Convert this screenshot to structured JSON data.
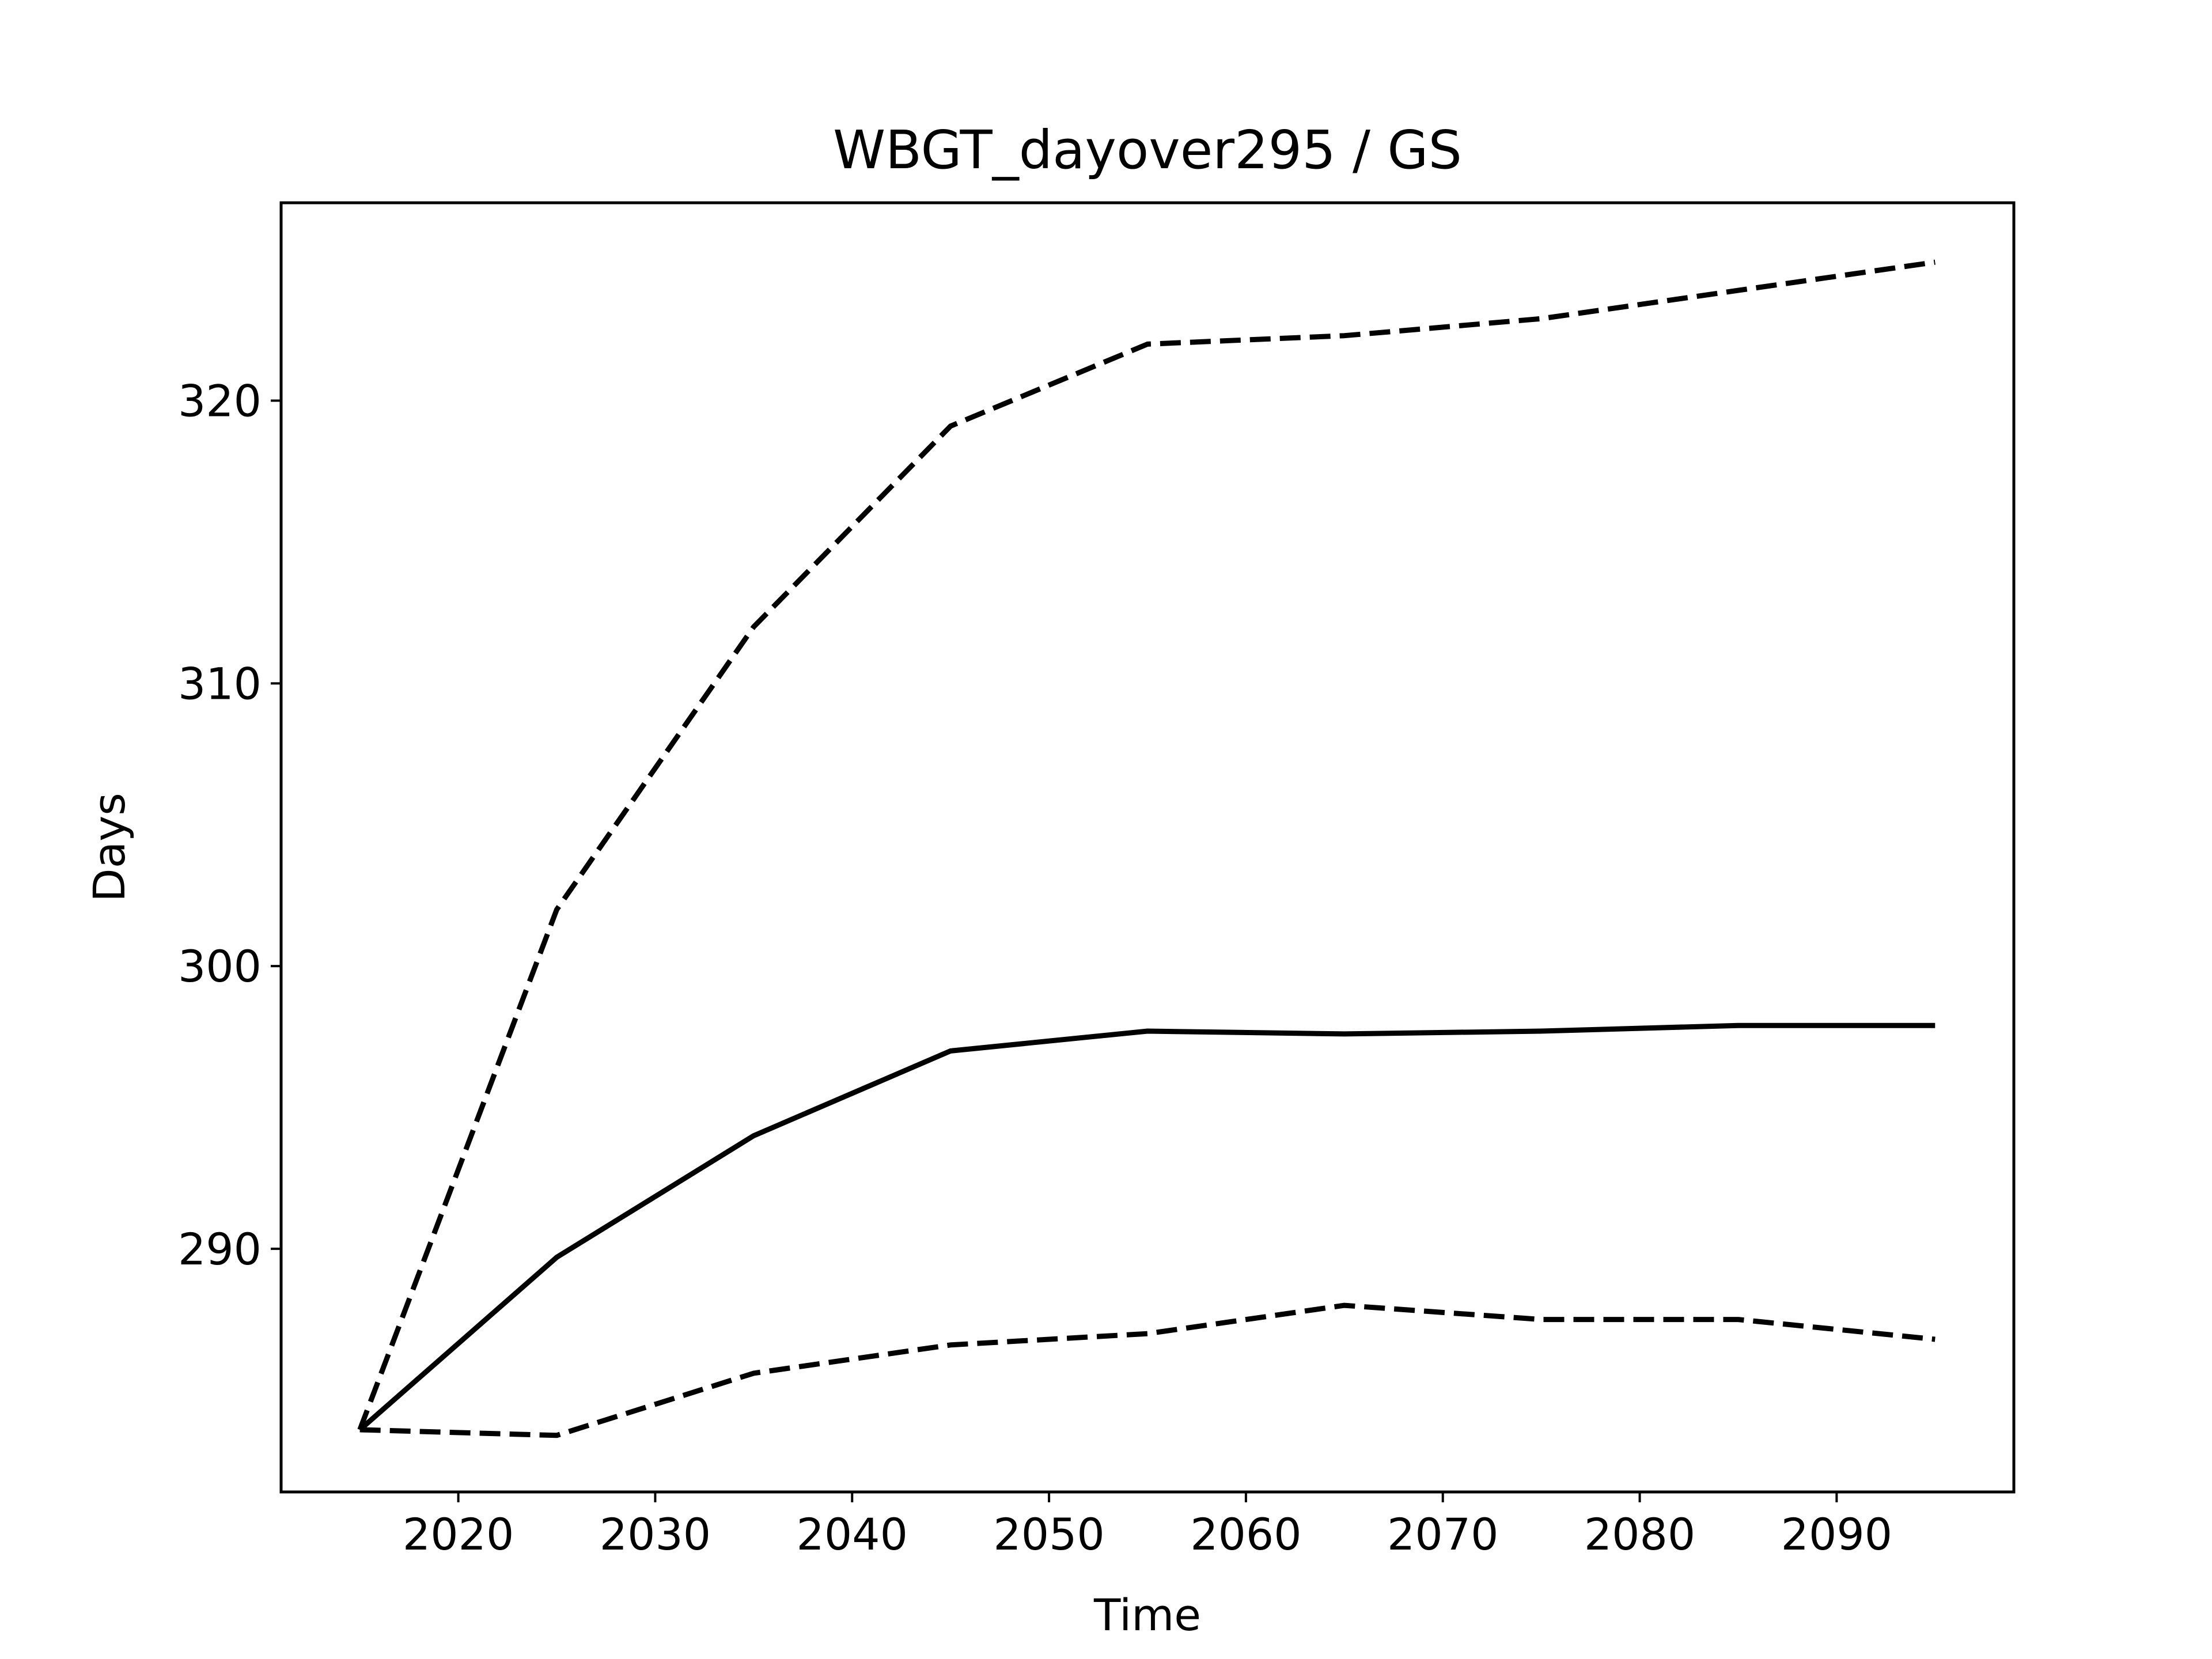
{
  "chart_data": {
    "type": "line",
    "title": "WBGT_dayover295 / GS",
    "xlabel": "Time",
    "ylabel": "Days",
    "xlim": [
      2011,
      2099
    ],
    "ylim": [
      281.4,
      327
    ],
    "x_ticks": [
      2020,
      2030,
      2040,
      2050,
      2060,
      2070,
      2080,
      2090
    ],
    "y_ticks": [
      290,
      300,
      310,
      320
    ],
    "x": [
      2015,
      2025,
      2035,
      2045,
      2055,
      2065,
      2075,
      2085,
      2095
    ],
    "series": [
      {
        "style": "dashed",
        "color": "#000000",
        "values": [
          283.6,
          302.0,
          312.0,
          319.1,
          322.0,
          322.3,
          322.9,
          323.9,
          324.9
        ]
      },
      {
        "style": "solid",
        "color": "#000000",
        "values": [
          283.6,
          289.7,
          294.0,
          297.0,
          297.7,
          297.6,
          297.7,
          297.9,
          297.9
        ]
      },
      {
        "style": "dashed",
        "color": "#000000",
        "values": [
          283.6,
          283.4,
          285.6,
          286.6,
          287.0,
          288.0,
          287.5,
          287.5,
          286.8
        ]
      }
    ],
    "grid": false,
    "legend": "none"
  }
}
